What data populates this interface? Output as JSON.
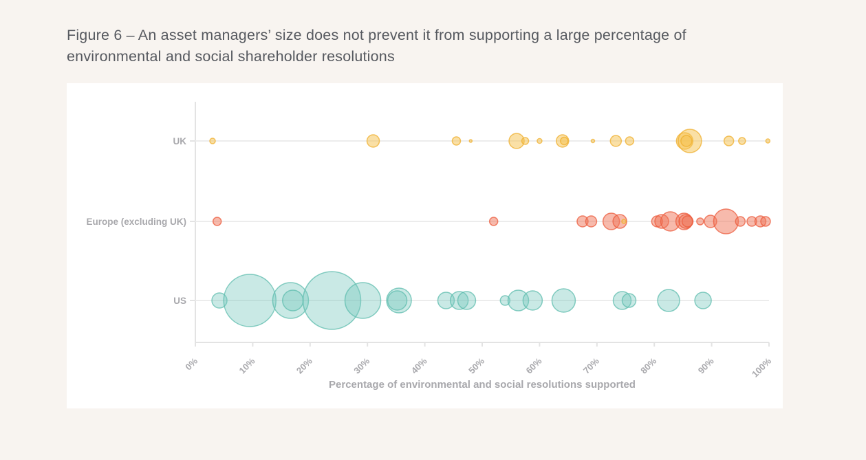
{
  "page": {
    "background_color": "#f8f4f0",
    "card_background_color": "#ffffff"
  },
  "title": {
    "text": "Figure 6 – An asset managers’ size does not prevent it from supporting a large percentage of environmental and social shareholder resolutions"
  },
  "chart_data": {
    "type": "scatter",
    "subtype": "bubble-strip-plot",
    "title": "",
    "xlabel": "Percentage of environmental and social resolutions supported",
    "ylabel": "",
    "xlim": [
      0,
      100
    ],
    "grid": "horizontal-row-lines",
    "x_ticks": [
      "0%",
      "10%",
      "20%",
      "30%",
      "40%",
      "50%",
      "60%",
      "70%",
      "80%",
      "90%",
      "100%"
    ],
    "x_tick_values": [
      0,
      10,
      20,
      30,
      40,
      50,
      60,
      70,
      80,
      90,
      100
    ],
    "categories": [
      "UK",
      "Europe (excluding UK)",
      "US"
    ],
    "axis_color": "#e3e3e3",
    "grid_color": "#ececec",
    "label_color": "#a8a8ac",
    "series": [
      {
        "name": "UK",
        "color": "#f5c14e",
        "stroke": "#efaf2e",
        "fill_opacity": 0.5,
        "points": [
          {
            "x": 3,
            "r": 4
          },
          {
            "x": 31,
            "r": 9
          },
          {
            "x": 45.5,
            "r": 6
          },
          {
            "x": 48,
            "r": 2
          },
          {
            "x": 56,
            "r": 11
          },
          {
            "x": 57.5,
            "r": 5
          },
          {
            "x": 60,
            "r": 3.5
          },
          {
            "x": 64,
            "r": 9
          },
          {
            "x": 64.3,
            "r": 5.5
          },
          {
            "x": 69.3,
            "r": 2.5
          },
          {
            "x": 73.3,
            "r": 8
          },
          {
            "x": 75.7,
            "r": 6
          },
          {
            "x": 85.3,
            "r": 12
          },
          {
            "x": 86.2,
            "r": 17
          },
          {
            "x": 85.6,
            "r": 8
          },
          {
            "x": 93,
            "r": 7
          },
          {
            "x": 95.3,
            "r": 5
          },
          {
            "x": 99.8,
            "r": 3
          }
        ]
      },
      {
        "name": "Europe (excluding UK)",
        "color": "#f0755a",
        "stroke": "#ec5b3c",
        "fill_opacity": 0.5,
        "points": [
          {
            "x": 3.8,
            "r": 6
          },
          {
            "x": 52,
            "r": 6
          },
          {
            "x": 67.5,
            "r": 8
          },
          {
            "x": 69,
            "r": 8
          },
          {
            "x": 72.5,
            "r": 12
          },
          {
            "x": 74,
            "r": 10
          },
          {
            "x": 74.7,
            "r": 3,
            "color": "#f5c14e",
            "stroke": "#efaf2e"
          },
          {
            "x": 80.5,
            "r": 8
          },
          {
            "x": 81.3,
            "r": 10
          },
          {
            "x": 82.8,
            "r": 14
          },
          {
            "x": 85.2,
            "r": 12
          },
          {
            "x": 85.5,
            "r": 10
          },
          {
            "x": 85.8,
            "r": 8
          },
          {
            "x": 88,
            "r": 5
          },
          {
            "x": 89.8,
            "r": 9
          },
          {
            "x": 92.5,
            "r": 18
          },
          {
            "x": 95,
            "r": 7
          },
          {
            "x": 97,
            "r": 7
          },
          {
            "x": 98.5,
            "r": 8
          },
          {
            "x": 99.4,
            "r": 7
          }
        ]
      },
      {
        "name": "US",
        "color": "#79c8bd",
        "stroke": "#5dbcae",
        "fill_opacity": 0.4,
        "points": [
          {
            "x": 4.2,
            "r": 11
          },
          {
            "x": 9.5,
            "r": 38
          },
          {
            "x": 16.6,
            "r": 26
          },
          {
            "x": 17,
            "r": 15
          },
          {
            "x": 23.8,
            "r": 42
          },
          {
            "x": 29.2,
            "r": 26
          },
          {
            "x": 35.5,
            "r": 18
          },
          {
            "x": 35.2,
            "r": 14
          },
          {
            "x": 43.7,
            "r": 12
          },
          {
            "x": 46,
            "r": 13
          },
          {
            "x": 47.3,
            "r": 13
          },
          {
            "x": 54,
            "r": 7
          },
          {
            "x": 56.3,
            "r": 15
          },
          {
            "x": 58.8,
            "r": 14
          },
          {
            "x": 64.2,
            "r": 17
          },
          {
            "x": 74.4,
            "r": 13
          },
          {
            "x": 75.6,
            "r": 10
          },
          {
            "x": 82.5,
            "r": 16
          },
          {
            "x": 88.5,
            "r": 12
          }
        ]
      }
    ]
  }
}
